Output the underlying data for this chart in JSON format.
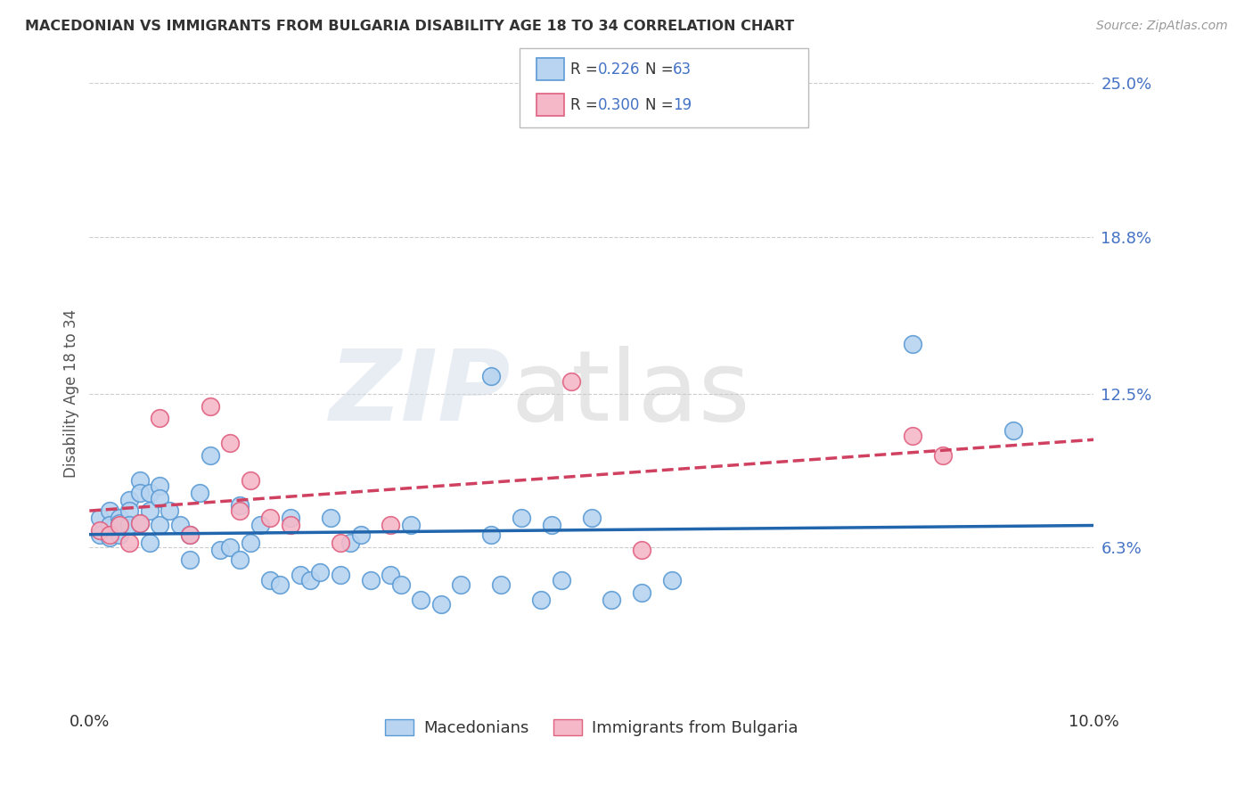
{
  "title": "MACEDONIAN VS IMMIGRANTS FROM BULGARIA DISABILITY AGE 18 TO 34 CORRELATION CHART",
  "source": "Source: ZipAtlas.com",
  "ylabel": "Disability Age 18 to 34",
  "xlim": [
    0.0,
    0.1
  ],
  "ylim": [
    0.0,
    0.25
  ],
  "ytick_values": [
    0.063,
    0.125,
    0.188,
    0.25
  ],
  "ytick_labels": [
    "6.3%",
    "12.5%",
    "18.8%",
    "25.0%"
  ],
  "background_color": "#ffffff",
  "grid_color": "#cccccc",
  "watermark_text": "ZIP",
  "watermark_text2": "atlas",
  "series": [
    {
      "name": "Macedonians",
      "color": "#b8d4f0",
      "edge_color": "#5b9bd5",
      "line_color": "#2166ac",
      "line_style": "-",
      "R": 0.226,
      "N": 63,
      "x": [
        0.001,
        0.001,
        0.002,
        0.002,
        0.002,
        0.003,
        0.003,
        0.003,
        0.003,
        0.004,
        0.004,
        0.004,
        0.005,
        0.005,
        0.005,
        0.006,
        0.006,
        0.006,
        0.007,
        0.007,
        0.007,
        0.008,
        0.009,
        0.01,
        0.01,
        0.011,
        0.012,
        0.013,
        0.014,
        0.015,
        0.015,
        0.016,
        0.017,
        0.018,
        0.019,
        0.02,
        0.021,
        0.022,
        0.023,
        0.024,
        0.025,
        0.026,
        0.027,
        0.028,
        0.03,
        0.031,
        0.032,
        0.033,
        0.035,
        0.037,
        0.04,
        0.041,
        0.043,
        0.045,
        0.047,
        0.05,
        0.052,
        0.055,
        0.058,
        0.04,
        0.082,
        0.092,
        0.046
      ],
      "y": [
        0.075,
        0.068,
        0.078,
        0.072,
        0.067,
        0.075,
        0.07,
        0.068,
        0.073,
        0.082,
        0.078,
        0.072,
        0.09,
        0.085,
        0.073,
        0.085,
        0.078,
        0.065,
        0.088,
        0.083,
        0.072,
        0.078,
        0.072,
        0.068,
        0.058,
        0.085,
        0.1,
        0.062,
        0.063,
        0.08,
        0.058,
        0.065,
        0.072,
        0.05,
        0.048,
        0.075,
        0.052,
        0.05,
        0.053,
        0.075,
        0.052,
        0.065,
        0.068,
        0.05,
        0.052,
        0.048,
        0.072,
        0.042,
        0.04,
        0.048,
        0.068,
        0.048,
        0.075,
        0.042,
        0.05,
        0.075,
        0.042,
        0.045,
        0.05,
        0.132,
        0.145,
        0.11,
        0.072
      ]
    },
    {
      "name": "Immigrants from Bulgaria",
      "color": "#f4b8c8",
      "edge_color": "#e06080",
      "line_color": "#d04060",
      "line_style": "--",
      "R": 0.3,
      "N": 19,
      "x": [
        0.001,
        0.002,
        0.003,
        0.004,
        0.005,
        0.007,
        0.01,
        0.012,
        0.014,
        0.015,
        0.016,
        0.018,
        0.02,
        0.025,
        0.03,
        0.048,
        0.055,
        0.082,
        0.085
      ],
      "y": [
        0.07,
        0.068,
        0.072,
        0.065,
        0.073,
        0.115,
        0.068,
        0.12,
        0.105,
        0.078,
        0.09,
        0.075,
        0.072,
        0.065,
        0.072,
        0.13,
        0.062,
        0.108,
        0.1
      ]
    }
  ]
}
